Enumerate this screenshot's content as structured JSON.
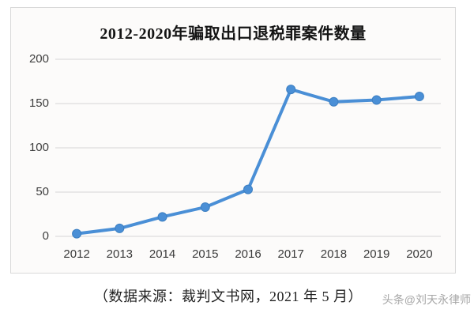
{
  "chart": {
    "title": "2012-2020年骗取出口退税罪案件数量"
  },
  "chart_data": {
    "type": "line",
    "title": "2012-2020年骗取出口退税罪案件数量",
    "categories": [
      "2012",
      "2013",
      "2014",
      "2015",
      "2016",
      "2017",
      "2018",
      "2019",
      "2020"
    ],
    "values": [
      3,
      9,
      22,
      33,
      53,
      166,
      152,
      154,
      158
    ],
    "xlabel": "",
    "ylabel": "",
    "ylim": [
      0,
      200
    ],
    "yticks": [
      0,
      50,
      100,
      150,
      200
    ],
    "grid": "horizontal",
    "legend": "none",
    "marker": "circle"
  },
  "footer": {
    "source_note": "（数据来源：裁判文书网，2021 年 5 月）",
    "watermark": "头条@刘天永律师"
  },
  "colors": {
    "line": "#4a8fd6",
    "marker": "#4a8fd6",
    "marker_edge": "#3c7fc2",
    "gridline": "#d6d6d6",
    "frame_border": "#d9d9d9",
    "frame_bg": "#fcfbfa",
    "tick_text": "#3f3f3f",
    "title_text": "#141414",
    "caption_text": "#1f1f1f",
    "watermark_text": "#a6a6a6"
  }
}
